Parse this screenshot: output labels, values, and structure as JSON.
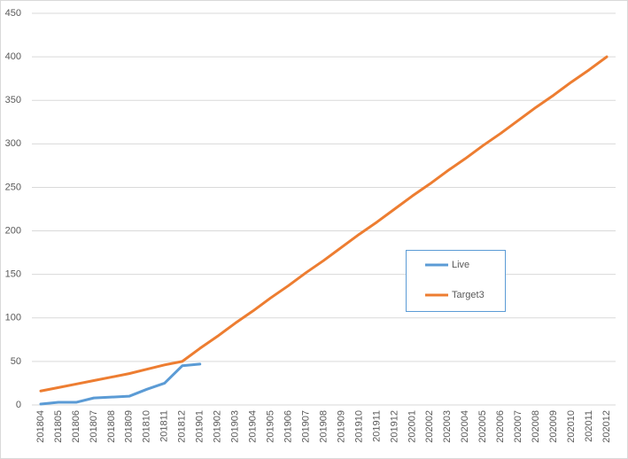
{
  "chart_data": {
    "type": "line",
    "categories": [
      "201804",
      "201805",
      "201806",
      "201807",
      "201808",
      "201809",
      "201810",
      "201811",
      "201812",
      "201901",
      "201902",
      "201903",
      "201904",
      "201905",
      "201906",
      "201907",
      "201908",
      "201909",
      "201910",
      "201911",
      "201912",
      "202001",
      "202002",
      "202003",
      "202004",
      "202005",
      "202006",
      "202007",
      "202008",
      "202009",
      "202010",
      "202011",
      "202012"
    ],
    "series": [
      {
        "name": "Live",
        "color": "#5b9bd5",
        "values": [
          1,
          3,
          3,
          8,
          9,
          10,
          18,
          25,
          45,
          47,
          null,
          null,
          null,
          null,
          null,
          null,
          null,
          null,
          null,
          null,
          null,
          null,
          null,
          null,
          null,
          null,
          null,
          null,
          null,
          null,
          null,
          null,
          null
        ]
      },
      {
        "name": "Target3",
        "color": "#ed7d31",
        "values": [
          16,
          20,
          24,
          28,
          32,
          36,
          41,
          46,
          50,
          65,
          79,
          94,
          108,
          123,
          137,
          152,
          166,
          181,
          196,
          210,
          225,
          240,
          254,
          269,
          283,
          298,
          312,
          327,
          342,
          356,
          371,
          385,
          400
        ]
      }
    ],
    "ylim": [
      0,
      450
    ],
    "yticks": [
      0,
      50,
      100,
      150,
      200,
      250,
      300,
      350,
      400,
      450
    ],
    "grid": true
  }
}
